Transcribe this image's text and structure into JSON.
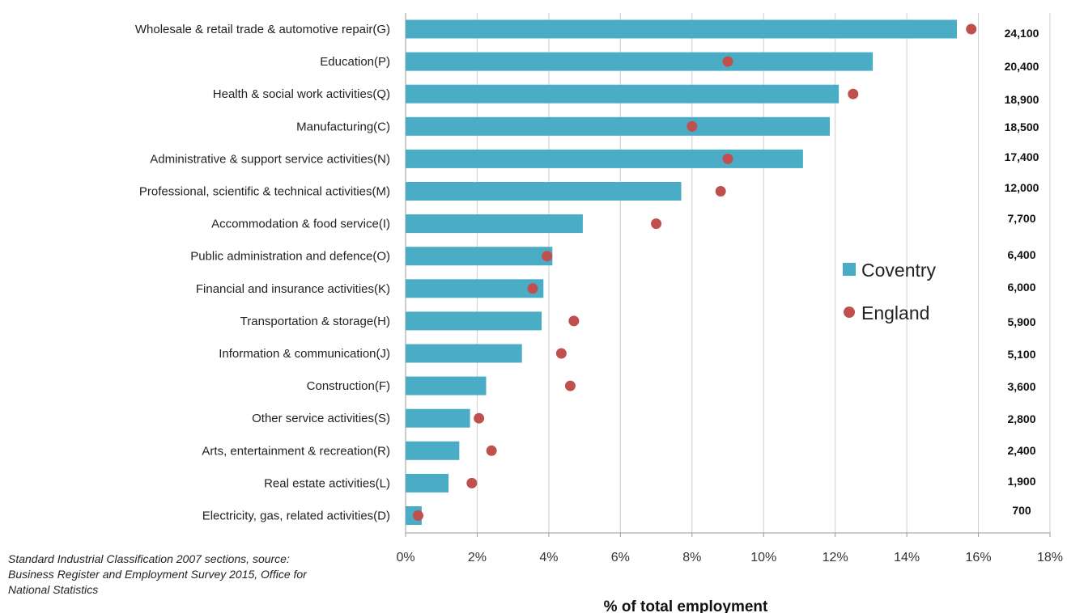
{
  "colors": {
    "coventry": "#4bacc6",
    "england": "#c0504d",
    "grid": "#cfcfcf",
    "axis": "#9a9a9a"
  },
  "source_note": "Standard Industrial Classification 2007 sections, source: Business Register and Employment Survey 2015, Office for National Statistics",
  "chart_data": {
    "type": "bar",
    "orientation": "horizontal",
    "xlabel": "% of total employment",
    "ylabel": "",
    "xlim": [
      0,
      18
    ],
    "x_ticks": [
      0,
      2,
      4,
      6,
      8,
      10,
      12,
      14,
      16,
      18
    ],
    "x_tick_format": "percent",
    "grid": "vertical",
    "legend_position": "right",
    "categories": [
      "Wholesale & retail trade & automotive repair(G)",
      "Education(P)",
      "Health & social work activities(Q)",
      "Manufacturing(C)",
      "Administrative & support service activities(N)",
      "Professional, scientific & technical activities(M)",
      "Accommodation & food service(I)",
      "Public administration and defence(O)",
      "Financial and insurance activities(K)",
      "Transportation & storage(H)",
      "Information & communication(J)",
      "Construction(F)",
      "Other service activities(S)",
      "Arts, entertainment & recreation(R)",
      "Real estate activities(L)",
      "Electricity, gas, related activities(D)"
    ],
    "series": [
      {
        "name": "Coventry",
        "mark": "bar",
        "values": [
          15.4,
          13.05,
          12.1,
          11.85,
          11.1,
          7.7,
          4.95,
          4.1,
          3.85,
          3.8,
          3.25,
          2.25,
          1.8,
          1.5,
          1.2,
          0.45
        ]
      },
      {
        "name": "England",
        "mark": "dot",
        "values": [
          15.8,
          9.0,
          12.5,
          8.0,
          9.0,
          8.8,
          7.0,
          3.95,
          3.55,
          4.7,
          4.35,
          4.6,
          2.05,
          2.4,
          1.85,
          0.35
        ]
      }
    ],
    "counts": [
      "24,100",
      "20,400",
      "18,900",
      "18,500",
      "17,400",
      "12,000",
      "7,700",
      "6,400",
      "6,000",
      "5,900",
      "5,100",
      "3,600",
      "2,800",
      "2,400",
      "1,900",
      "700"
    ]
  }
}
